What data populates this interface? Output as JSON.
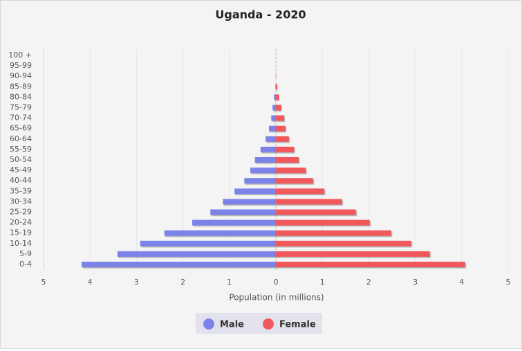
{
  "chart_data": {
    "type": "bar",
    "orientation": "horizontal",
    "title": "Uganda - 2020",
    "x_label": "Population (in millions)",
    "categories": [
      "100 +",
      "95-99",
      "90-94",
      "85-89",
      "80-84",
      "75-79",
      "70-74",
      "65-69",
      "60-64",
      "55-59",
      "50-54",
      "45-49",
      "40-44",
      "35-39",
      "30-34",
      "25-29",
      "20-24",
      "15-19",
      "10-14",
      "5-9",
      "0-4"
    ],
    "series": [
      {
        "name": "Male",
        "color": "#7b83e8",
        "values": [
          0,
          0,
          -0.002,
          -0.01,
          -0.04,
          -0.07,
          -0.1,
          -0.15,
          -0.22,
          -0.33,
          -0.45,
          -0.55,
          -0.68,
          -0.89,
          -1.14,
          -1.41,
          -1.8,
          -2.4,
          -2.92,
          -3.41,
          -4.18
        ]
      },
      {
        "name": "Female",
        "color": "#f0595b",
        "values": [
          0,
          0.001,
          0.005,
          0.03,
          0.07,
          0.12,
          0.18,
          0.21,
          0.28,
          0.39,
          0.49,
          0.64,
          0.8,
          1.04,
          1.42,
          1.72,
          2.02,
          2.48,
          2.91,
          3.31,
          4.07
        ]
      }
    ],
    "xlim": [
      -5,
      5
    ],
    "xticks": [
      {
        "value": -5,
        "label": "5"
      },
      {
        "value": -4,
        "label": "4"
      },
      {
        "value": -3,
        "label": "3"
      },
      {
        "value": -2,
        "label": "2"
      },
      {
        "value": -1,
        "label": "1"
      },
      0,
      1,
      2,
      3,
      4,
      5
    ],
    "grid": true
  }
}
